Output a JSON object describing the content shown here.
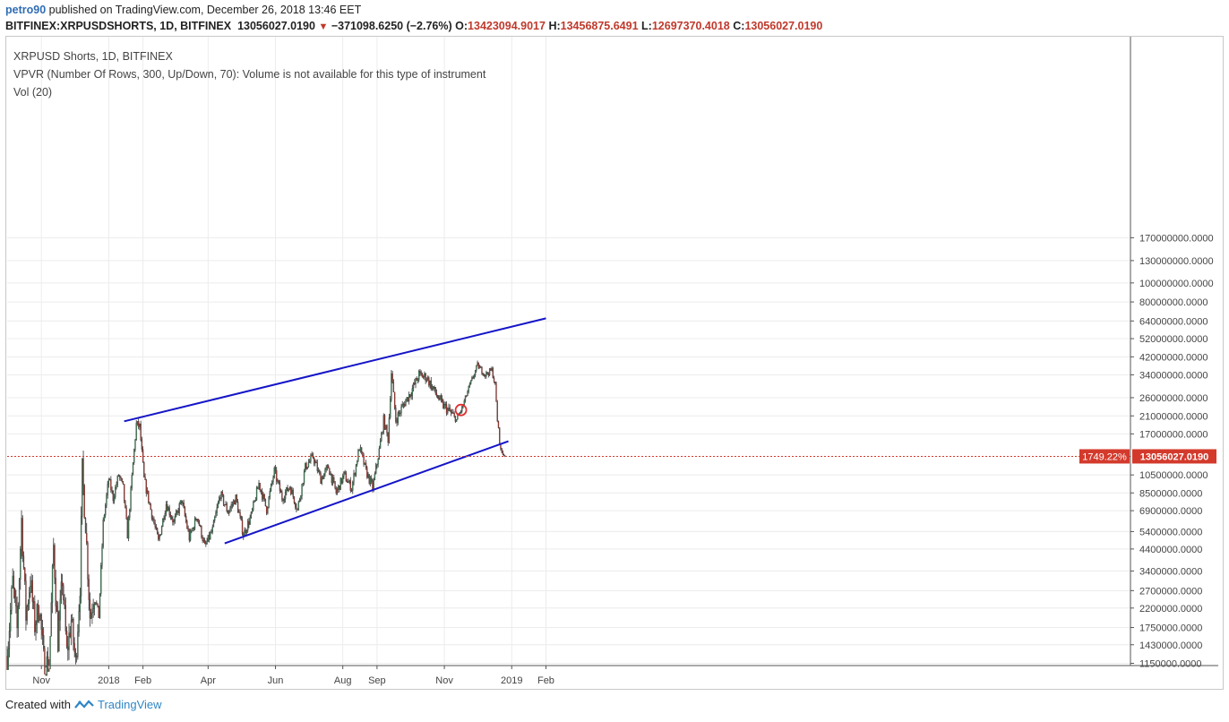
{
  "header": {
    "author": "petro90",
    "published_text": "published on TradingView.com, December 26, 2018 13:46 EET",
    "symbol": "BITFINEX:XRPUSDSHORTS, 1D, BITFINEX",
    "last": "13056027.0190",
    "change": "−371098.6250 (−2.76%)",
    "o_label": "O:",
    "o": "13423094.9017",
    "h_label": "H:",
    "h": "13456875.6491",
    "l_label": "L:",
    "l": "12697370.4018",
    "c_label": "C:",
    "c": "13056027.0190"
  },
  "legend": {
    "line1": "XRPUSD Shorts, 1D, BITFINEX",
    "line2": "VPVR (Number Of Rows, 300, Up/Down, 70): Volume is not available for this type of instrument",
    "line3": "Vol (20)"
  },
  "footer": {
    "created_with": "Created with",
    "brand": "TradingView"
  },
  "colors": {
    "up": "#3d8a5a",
    "down": "#b5342c",
    "trendline": "#1515c8",
    "price_line": "#d33a2c",
    "grid": "#ececec"
  },
  "chart_data": {
    "type": "candlestick",
    "scale": "log",
    "ylim": [
      1120000,
      1800000000
    ],
    "y_ticks": [
      "170000000.0000",
      "130000000.0000",
      "100000000.0000",
      "80000000.0000",
      "64000000.0000",
      "52000000.0000",
      "42000000.0000",
      "34000000.0000",
      "26000000.0000",
      "21000000.0000",
      "17000000.0000",
      "10500000.0000",
      "8500000.0000",
      "6900000.0000",
      "5400000.0000",
      "4400000.0000",
      "3400000.0000",
      "2700000.0000",
      "2200000.0000",
      "1750000.0000",
      "1430000.0000",
      "1150000.0000"
    ],
    "x_labels": [
      {
        "label": "Nov",
        "date": "2017-11-01"
      },
      {
        "label": "2018",
        "date": "2018-01-01"
      },
      {
        "label": "Feb",
        "date": "2018-02-01"
      },
      {
        "label": "Apr",
        "date": "2018-04-01"
      },
      {
        "label": "Jun",
        "date": "2018-06-01"
      },
      {
        "label": "Aug",
        "date": "2018-08-01"
      },
      {
        "label": "Sep",
        "date": "2018-09-01"
      },
      {
        "label": "Nov",
        "date": "2018-11-01"
      },
      {
        "label": "2019",
        "date": "2019-01-01"
      },
      {
        "label": "Feb",
        "date": "2019-02-01"
      }
    ],
    "price_path": [
      [
        "2017-10-01",
        1250000
      ],
      [
        "2017-10-06",
        3000000
      ],
      [
        "2017-10-10",
        1700000
      ],
      [
        "2017-10-14",
        6200000
      ],
      [
        "2017-10-18",
        2000000
      ],
      [
        "2017-10-22",
        3100000
      ],
      [
        "2017-10-26",
        1800000
      ],
      [
        "2017-10-30",
        2300000
      ],
      [
        "2017-11-03",
        1200000
      ],
      [
        "2017-11-08",
        1120000
      ],
      [
        "2017-11-12",
        4500000
      ],
      [
        "2017-11-16",
        1500000
      ],
      [
        "2017-11-20",
        3100000
      ],
      [
        "2017-11-24",
        1300000
      ],
      [
        "2017-11-28",
        1900000
      ],
      [
        "2017-12-02",
        1150000
      ],
      [
        "2017-12-06",
        2900000
      ],
      [
        "2017-12-08",
        11000000
      ],
      [
        "2017-12-11",
        6000000
      ],
      [
        "2017-12-15",
        2000000
      ],
      [
        "2017-12-19",
        2600000
      ],
      [
        "2017-12-23",
        2000000
      ],
      [
        "2017-12-27",
        6000000
      ],
      [
        "2018-01-01",
        10000000
      ],
      [
        "2018-01-05",
        8000000
      ],
      [
        "2018-01-10",
        10500000
      ],
      [
        "2018-01-14",
        9000000
      ],
      [
        "2018-01-18",
        5200000
      ],
      [
        "2018-01-23",
        12000000
      ],
      [
        "2018-01-26",
        19000000
      ],
      [
        "2018-01-29",
        18500000
      ],
      [
        "2018-02-02",
        10000000
      ],
      [
        "2018-02-08",
        7000000
      ],
      [
        "2018-02-15",
        4800000
      ],
      [
        "2018-02-22",
        7500000
      ],
      [
        "2018-03-01",
        6000000
      ],
      [
        "2018-03-08",
        7800000
      ],
      [
        "2018-03-15",
        5000000
      ],
      [
        "2018-03-22",
        6500000
      ],
      [
        "2018-03-29",
        4500000
      ],
      [
        "2018-04-05",
        5500000
      ],
      [
        "2018-04-12",
        8400000
      ],
      [
        "2018-04-19",
        6800000
      ],
      [
        "2018-04-26",
        8000000
      ],
      [
        "2018-05-03",
        5200000
      ],
      [
        "2018-05-10",
        6500000
      ],
      [
        "2018-05-17",
        9500000
      ],
      [
        "2018-05-24",
        7000000
      ],
      [
        "2018-05-31",
        11000000
      ],
      [
        "2018-06-07",
        8000000
      ],
      [
        "2018-06-14",
        9200000
      ],
      [
        "2018-06-21",
        7000000
      ],
      [
        "2018-06-28",
        11500000
      ],
      [
        "2018-07-05",
        13000000
      ],
      [
        "2018-07-12",
        10000000
      ],
      [
        "2018-07-19",
        11500000
      ],
      [
        "2018-07-26",
        8500000
      ],
      [
        "2018-08-02",
        10500000
      ],
      [
        "2018-08-09",
        9000000
      ],
      [
        "2018-08-16",
        14500000
      ],
      [
        "2018-08-22",
        11000000
      ],
      [
        "2018-08-28",
        9000000
      ],
      [
        "2018-09-03",
        14000000
      ],
      [
        "2018-09-07",
        20000000
      ],
      [
        "2018-09-11",
        16000000
      ],
      [
        "2018-09-14",
        35000000
      ],
      [
        "2018-09-18",
        20000000
      ],
      [
        "2018-09-25",
        24000000
      ],
      [
        "2018-10-02",
        28000000
      ],
      [
        "2018-10-09",
        34000000
      ],
      [
        "2018-10-16",
        33000000
      ],
      [
        "2018-10-23",
        28000000
      ],
      [
        "2018-10-30",
        24000000
      ],
      [
        "2018-11-06",
        22000000
      ],
      [
        "2018-11-12",
        20000000
      ],
      [
        "2018-11-17",
        23000000
      ],
      [
        "2018-11-24",
        30000000
      ],
      [
        "2018-12-01",
        38000000
      ],
      [
        "2018-12-08",
        34000000
      ],
      [
        "2018-12-14",
        36000000
      ],
      [
        "2018-12-17",
        30000000
      ],
      [
        "2018-12-19",
        20000000
      ],
      [
        "2018-12-22",
        14000000
      ],
      [
        "2018-12-26",
        13056027
      ]
    ],
    "highlights": [
      {
        "date": "2018-11-16",
        "value": 22500000
      }
    ],
    "trendlines": [
      {
        "from": [
          "2018-01-15",
          19700000
        ],
        "to": [
          "2019-02-01",
          66000000
        ]
      },
      {
        "from": [
          "2018-04-16",
          4700000
        ],
        "to": [
          "2018-12-29",
          15600000
        ]
      }
    ],
    "last_price": 13056027,
    "price_labels": {
      "percent": "1749.22%",
      "price": "13056027.0190"
    }
  }
}
